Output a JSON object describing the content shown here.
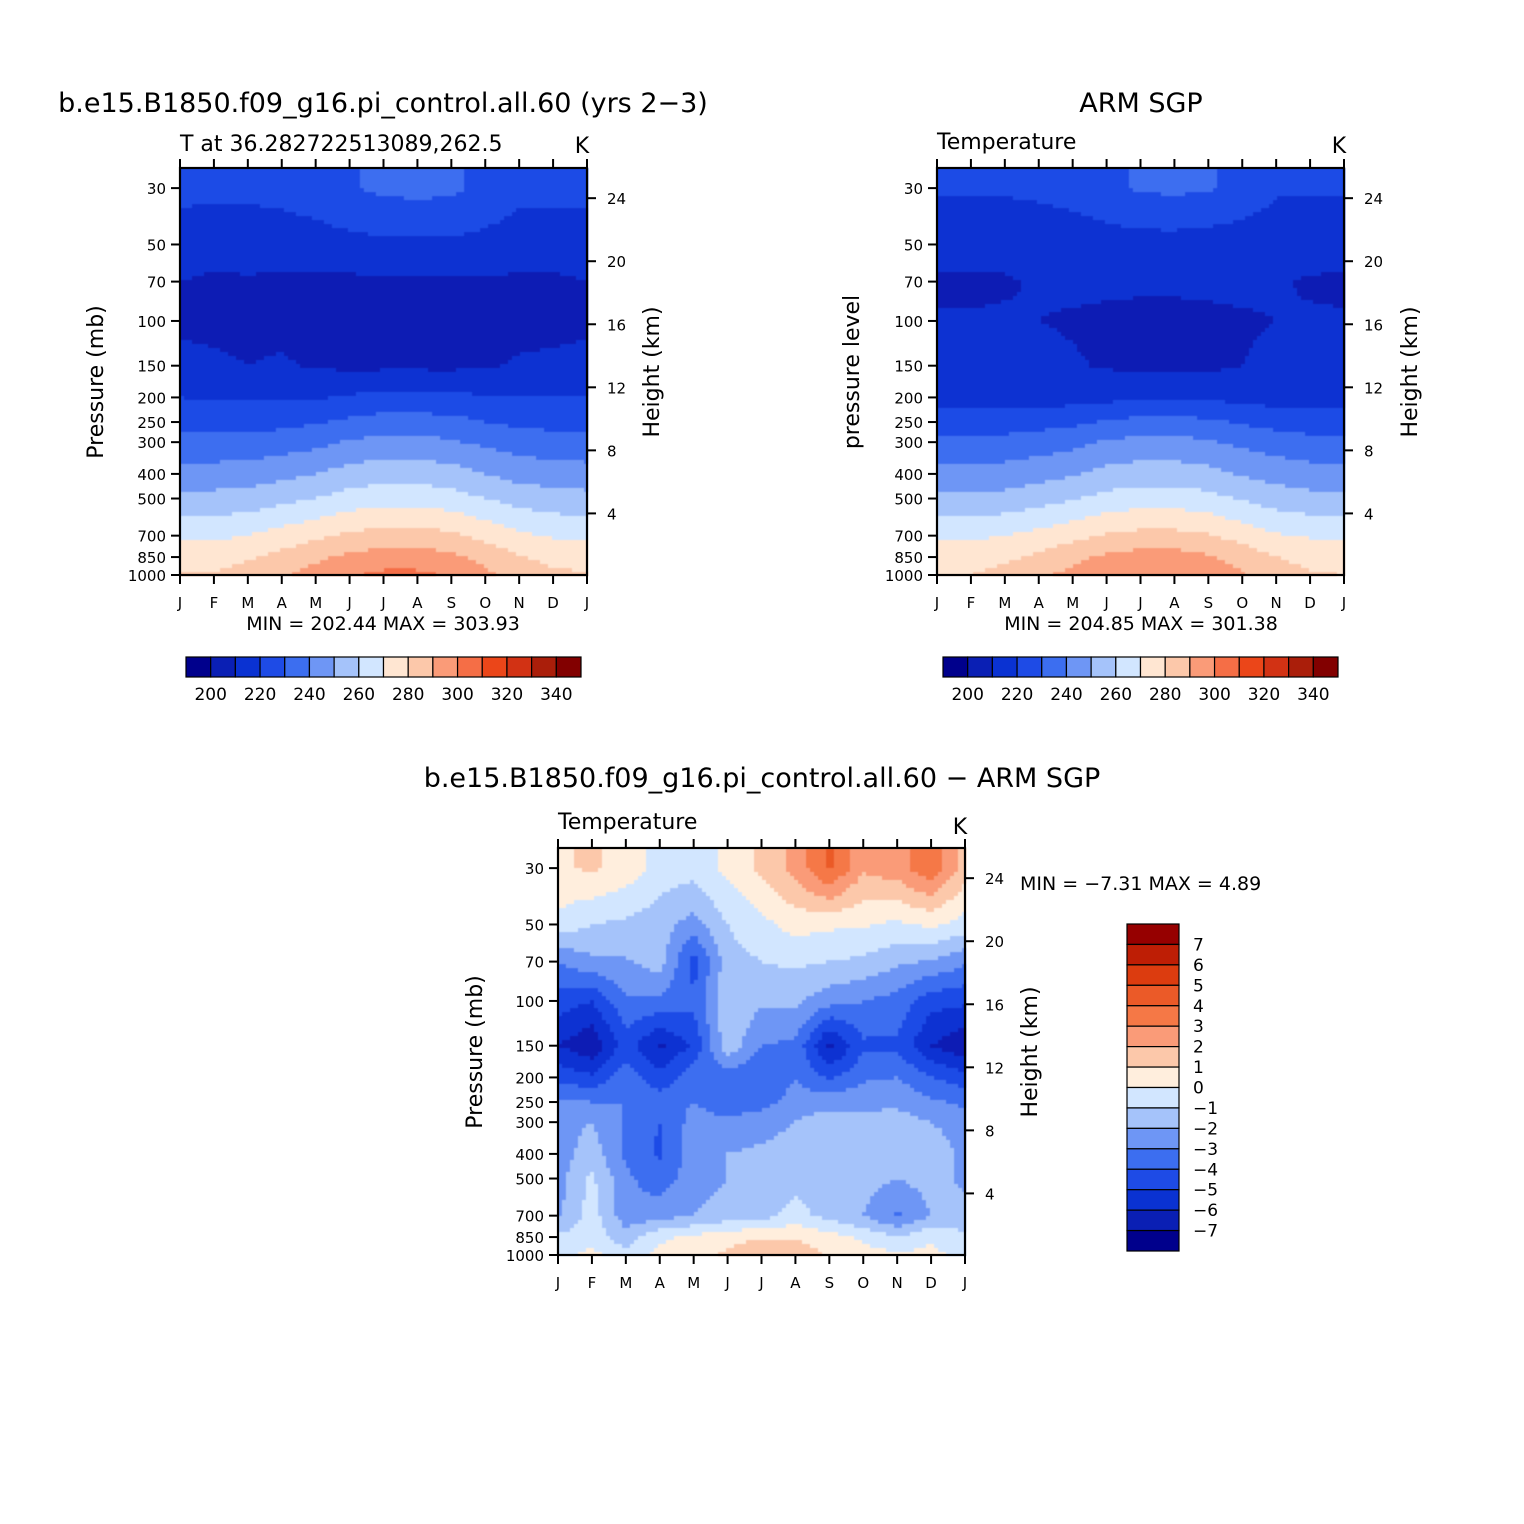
{
  "months": [
    "J",
    "F",
    "M",
    "A",
    "M",
    "J",
    "J",
    "A",
    "S",
    "O",
    "N",
    "D",
    "J"
  ],
  "pressure_ticks": [
    "30",
    "50",
    "70",
    "100",
    "150",
    "200",
    "250",
    "300",
    "400",
    "500",
    "700",
    "850",
    "1000"
  ],
  "pressure_values": [
    30,
    50,
    70,
    100,
    150,
    200,
    250,
    300,
    400,
    500,
    700,
    850,
    1000
  ],
  "height_ticks": [
    "24",
    "20",
    "16",
    "12",
    "8",
    "4"
  ],
  "height_values": [
    24,
    20,
    16,
    12,
    8,
    4
  ],
  "abs_palette": [
    "#00008c",
    "#0a1fb4",
    "#0a32d2",
    "#1e4be6",
    "#3c6ef0",
    "#6e96f5",
    "#a5c3fa",
    "#d2e6ff",
    "#ffe6d2",
    "#fcc8aa",
    "#fa9b78",
    "#f56e46",
    "#eb4619",
    "#d23214",
    "#aa1e0a",
    "#820000"
  ],
  "abs_colorbar_labels": [
    "200",
    "220",
    "240",
    "260",
    "280",
    "300",
    "320",
    "340"
  ],
  "diff_palette": [
    "#00008c",
    "#0a1fb4",
    "#0a32d2",
    "#1e4be6",
    "#3c6ef0",
    "#6e96f5",
    "#a5c3fa",
    "#d2e6ff",
    "#ffeedd",
    "#fcc8aa",
    "#fa9b78",
    "#f57846",
    "#eb5a28",
    "#dc3c0f",
    "#be1e05",
    "#960000"
  ],
  "diff_colorbar_labels": [
    "7",
    "6",
    "5",
    "4",
    "3",
    "2",
    "1",
    "0",
    "−1",
    "−2",
    "−3",
    "−4",
    "−5",
    "−6",
    "−7"
  ],
  "panels": {
    "model": {
      "title": "b.e15.B1850.f09_g16.pi_control.all.60 (yrs 2−3)",
      "left_label": "T at 36.282722513089,262.5",
      "right_label": "K",
      "ylabel": "Pressure (mb)",
      "ylabel2": "Height (km)",
      "minmax": "MIN = 202.44 MAX = 303.93"
    },
    "obs": {
      "title": "ARM SGP",
      "left_label": "Temperature",
      "right_label": "K",
      "ylabel": "pressure level",
      "ylabel2": "Height (km)",
      "minmax": "MIN = 204.85 MAX = 301.38"
    },
    "diff": {
      "title": "b.e15.B1850.f09_g16.pi_control.all.60 − ARM SGP",
      "left_label": "Temperature",
      "right_label": "K",
      "ylabel": "Pressure (mb)",
      "ylabel2": "Height (km)",
      "minmax": "MIN =   −7.31 MAX =    4.89"
    }
  },
  "chart_data": [
    {
      "type": "heatmap",
      "title": "b.e15.B1850.f09_g16.pi_control.all.60 (yrs 2−3)",
      "subtitle": "T at 36.282722513089,262.5",
      "units": "K",
      "xlabel": "",
      "ylabel": "Pressure (mb)",
      "ylabel_right": "Height (km)",
      "x": [
        "J",
        "F",
        "M",
        "A",
        "M",
        "J",
        "J",
        "A",
        "S",
        "O",
        "N",
        "D",
        "J"
      ],
      "y": [
        30,
        50,
        70,
        100,
        150,
        200,
        250,
        300,
        400,
        500,
        700,
        850,
        1000
      ],
      "y_scale": "log",
      "min": 202.44,
      "max": 303.93,
      "values": [
        [
          222,
          222,
          222,
          223,
          225,
          229,
          232,
          233,
          232,
          227,
          222,
          222,
          222
        ],
        [
          216,
          215,
          215,
          215,
          216,
          217,
          218,
          218,
          218,
          217,
          216,
          216,
          216
        ],
        [
          210,
          208,
          209,
          208,
          208,
          208,
          209,
          209,
          208,
          209,
          208,
          208,
          210
        ],
        [
          208,
          207,
          207,
          208,
          206,
          206,
          206,
          206,
          206,
          206,
          207,
          207,
          208
        ],
        [
          213,
          212,
          210,
          211,
          209,
          208,
          208,
          208,
          208,
          209,
          211,
          212,
          213
        ],
        [
          220,
          219,
          219,
          219,
          219,
          221,
          223,
          223,
          222,
          221,
          221,
          220,
          220
        ],
        [
          227,
          226,
          226,
          227,
          229,
          232,
          234,
          234,
          233,
          230,
          228,
          227,
          227
        ],
        [
          233,
          233,
          233,
          235,
          237,
          241,
          243,
          243,
          241,
          238,
          235,
          234,
          233
        ],
        [
          244,
          244,
          245,
          247,
          250,
          254,
          256,
          256,
          254,
          250,
          246,
          245,
          244
        ],
        [
          253,
          253,
          254,
          257,
          260,
          264,
          266,
          266,
          264,
          260,
          256,
          254,
          253
        ],
        [
          268,
          268,
          270,
          274,
          278,
          282,
          284,
          284,
          282,
          277,
          272,
          269,
          268
        ],
        [
          276,
          276,
          279,
          283,
          288,
          292,
          295,
          295,
          292,
          287,
          281,
          277,
          276
        ],
        [
          281,
          281,
          284,
          289,
          294,
          299,
          302,
          302,
          299,
          292,
          286,
          282,
          281
        ]
      ]
    },
    {
      "type": "heatmap",
      "title": "ARM SGP",
      "subtitle": "Temperature",
      "units": "K",
      "xlabel": "",
      "ylabel": "pressure level",
      "ylabel_right": "Height (km)",
      "x": [
        "J",
        "F",
        "M",
        "A",
        "M",
        "J",
        "J",
        "A",
        "S",
        "O",
        "N",
        "D",
        "J"
      ],
      "y": [
        30,
        50,
        70,
        100,
        150,
        200,
        250,
        300,
        400,
        500,
        700,
        850,
        1000
      ],
      "y_scale": "log",
      "min": 204.85,
      "max": 301.38,
      "values": [
        [
          221,
          221,
          221,
          222,
          224,
          228,
          231,
          232,
          231,
          226,
          221,
          221,
          221
        ],
        [
          215,
          215,
          214,
          214,
          214,
          215,
          216,
          216,
          215,
          215,
          215,
          215,
          215
        ],
        [
          208,
          208,
          209,
          211,
          212,
          212,
          212,
          212,
          212,
          212,
          211,
          209,
          208
        ],
        [
          211,
          211,
          211,
          210,
          209,
          208,
          207,
          207,
          208,
          209,
          210,
          211,
          211
        ],
        [
          213,
          213,
          213,
          213,
          211,
          209,
          208,
          208,
          208,
          210,
          212,
          213,
          213
        ],
        [
          216,
          216,
          216,
          216,
          216,
          217,
          219,
          219,
          218,
          217,
          216,
          216,
          216
        ],
        [
          224,
          224,
          225,
          226,
          228,
          231,
          233,
          233,
          232,
          229,
          226,
          225,
          224
        ],
        [
          232,
          232,
          233,
          235,
          237,
          241,
          243,
          243,
          241,
          238,
          235,
          233,
          232
        ],
        [
          243,
          243,
          244,
          246,
          249,
          253,
          255,
          255,
          253,
          249,
          246,
          244,
          243
        ],
        [
          252,
          252,
          253,
          256,
          259,
          263,
          265,
          265,
          263,
          259,
          255,
          253,
          252
        ],
        [
          268,
          268,
          270,
          273,
          277,
          281,
          283,
          283,
          281,
          276,
          271,
          269,
          268
        ],
        [
          276,
          276,
          278,
          282,
          287,
          292,
          294,
          294,
          291,
          286,
          280,
          277,
          276
        ],
        [
          280,
          280,
          283,
          288,
          293,
          298,
          300,
          300,
          297,
          291,
          285,
          281,
          280
        ]
      ]
    },
    {
      "type": "heatmap",
      "title": "b.e15.B1850.f09_g16.pi_control.all.60 − ARM SGP",
      "subtitle": "Temperature",
      "units": "K",
      "xlabel": "",
      "ylabel": "Pressure (mb)",
      "ylabel_right": "Height (km)",
      "x": [
        "J",
        "F",
        "M",
        "A",
        "M",
        "J",
        "J",
        "A",
        "S",
        "O",
        "N",
        "D",
        "J"
      ],
      "y": [
        30,
        50,
        70,
        100,
        150,
        200,
        250,
        300,
        400,
        500,
        700,
        850,
        1000
      ],
      "y_scale": "log",
      "min": -7.31,
      "max": 4.89,
      "values": [
        [
          0.8,
          1.2,
          0.6,
          -0.4,
          -0.6,
          0.3,
          1.2,
          2.4,
          4.2,
          2.2,
          2.6,
          3.8,
          1.5
        ],
        [
          -0.3,
          -1.0,
          -1.2,
          -1.6,
          -2.4,
          -1.0,
          -0.3,
          0.4,
          0.2,
          0.1,
          -0.2,
          0.2,
          -0.4
        ],
        [
          -3.0,
          -2.2,
          -2.1,
          -1.5,
          -4.5,
          -1.4,
          -1.0,
          -0.8,
          -1.0,
          -1.2,
          -1.8,
          -2.1,
          -2.8
        ],
        [
          -4.5,
          -5.0,
          -3.2,
          -3.2,
          -3.8,
          -1.2,
          -1.8,
          -1.8,
          -2.6,
          -3.0,
          -3.4,
          -4.6,
          -4.8
        ],
        [
          -6.0,
          -6.8,
          -4.5,
          -6.2,
          -4.8,
          -1.3,
          -3.0,
          -3.2,
          -6.4,
          -4.2,
          -4.2,
          -6.0,
          -6.8
        ],
        [
          -4.3,
          -4.8,
          -3.4,
          -4.6,
          -3.4,
          -3.6,
          -4.0,
          -3.0,
          -4.2,
          -3.2,
          -3.0,
          -4.0,
          -4.6
        ],
        [
          -2.8,
          -3.0,
          -3.0,
          -3.6,
          -3.0,
          -3.6,
          -3.4,
          -2.6,
          -2.4,
          -2.2,
          -2.2,
          -2.8,
          -3.2
        ],
        [
          -2.4,
          -2.0,
          -3.2,
          -4.0,
          -2.6,
          -2.8,
          -2.4,
          -2.0,
          -1.4,
          -1.8,
          -1.6,
          -2.0,
          -2.6
        ],
        [
          -2.6,
          -1.4,
          -3.2,
          -4.2,
          -2.4,
          -2.0,
          -1.8,
          -1.6,
          -1.6,
          -1.6,
          -1.6,
          -1.2,
          -2.4
        ],
        [
          -2.4,
          -0.8,
          -2.8,
          -3.6,
          -2.4,
          -2.0,
          -1.8,
          -1.4,
          -1.6,
          -1.6,
          -2.0,
          -1.6,
          -2.2
        ],
        [
          -2.2,
          -0.5,
          -2.6,
          -2.4,
          -2.0,
          -1.6,
          -1.4,
          -0.6,
          -1.4,
          -2.0,
          -3.2,
          -2.0,
          -1.6
        ],
        [
          -0.8,
          -0.4,
          -1.6,
          -0.2,
          0.2,
          0.6,
          0.9,
          0.9,
          0.4,
          -0.2,
          -1.0,
          -0.2,
          -0.8
        ],
        [
          -0.4,
          0.3,
          -0.6,
          0.3,
          0.6,
          1.2,
          1.9,
          1.6,
          0.9,
          0.4,
          0.2,
          0.3,
          -0.4
        ]
      ]
    }
  ]
}
